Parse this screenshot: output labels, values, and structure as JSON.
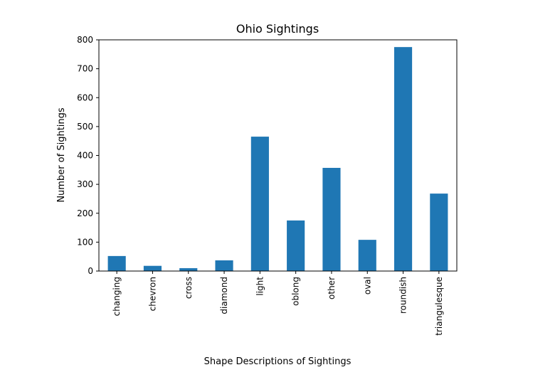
{
  "chart_data": {
    "type": "bar",
    "title": "Ohio Sightings",
    "xlabel": "Shape Descriptions of Sightings",
    "ylabel": "Number of Sightings",
    "categories": [
      "changing",
      "chevron",
      "cross",
      "diamond",
      "light",
      "oblong",
      "other",
      "oval",
      "roundish",
      "triangulesque"
    ],
    "values": [
      52,
      18,
      10,
      37,
      465,
      175,
      357,
      108,
      775,
      268
    ],
    "ylim": [
      0,
      800
    ],
    "yticks": [
      0,
      100,
      200,
      300,
      400,
      500,
      600,
      700,
      800
    ],
    "grid": false,
    "bar_color": "#1f77b4"
  }
}
